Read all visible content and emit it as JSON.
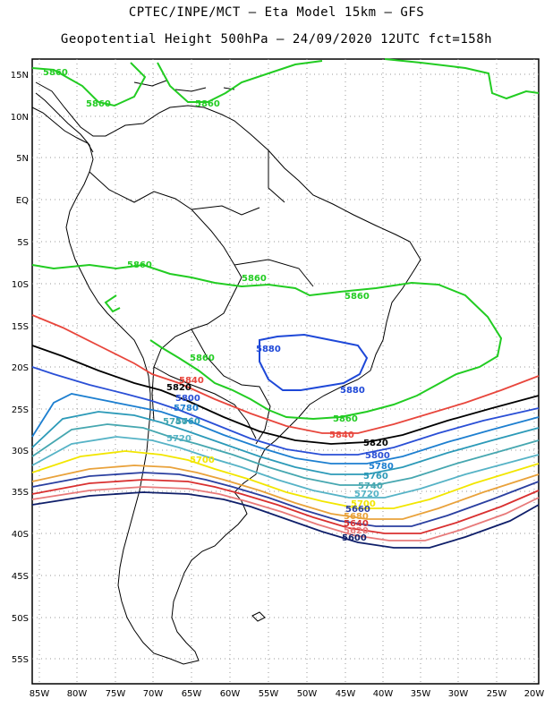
{
  "header": {
    "line1": "CPTEC/INPE/MCT –  Eta Model 15km – GFS",
    "line2": "Geopotential Height 500hPa – 24/09/2020 12UTC fct=158h"
  },
  "axes": {
    "lat_labels": [
      "15N",
      "10N",
      "5N",
      "EQ",
      "5S",
      "10S",
      "15S",
      "20S",
      "25S",
      "30S",
      "35S",
      "40S",
      "45S",
      "50S",
      "55S"
    ],
    "lon_labels": [
      "85W",
      "80W",
      "75W",
      "70W",
      "65W",
      "60W",
      "55W",
      "50W",
      "45W",
      "40W",
      "35W",
      "30W",
      "25W",
      "20W"
    ]
  },
  "contours": [
    {
      "value": "5860",
      "color": "#22cc22"
    },
    {
      "value": "5840",
      "color": "#e8463c"
    },
    {
      "value": "5820",
      "color": "#000000"
    },
    {
      "value": "5800",
      "color": "#2a4fd6"
    },
    {
      "value": "5780",
      "color": "#1d7fd0"
    },
    {
      "value": "5760",
      "color": "#2c9ab8"
    },
    {
      "value": "5740",
      "color": "#46a7b0"
    },
    {
      "value": "5720",
      "color": "#56b3c6"
    },
    {
      "value": "5700",
      "color": "#f2e600"
    },
    {
      "value": "5680",
      "color": "#e9a23b"
    },
    {
      "value": "5660",
      "color": "#2a3fa0"
    },
    {
      "value": "5640",
      "color": "#d93030"
    },
    {
      "value": "5620",
      "color": "#e87a7a"
    },
    {
      "value": "5600",
      "color": "#0f1f6a"
    },
    {
      "value": "5880",
      "color": "#1e48d8"
    }
  ],
  "contour_labels": {
    "g1": "5860",
    "g2": "5860",
    "g3": "5860",
    "g4": "5860",
    "g5": "5860",
    "g6": "5860",
    "g7": "5860",
    "g8": "5860",
    "b1": "5880",
    "b2": "5880",
    "r1": "5840",
    "r2": "5840",
    "k1": "5820",
    "k2": "5820",
    "c1": "5800",
    "c2": "5800",
    "c3": "5780",
    "c4": "5780",
    "c5": "5760",
    "c6": "5760",
    "c7": "5740",
    "c8": "5740",
    "c9": "5720",
    "c10": "5720",
    "y1": "5700",
    "y2": "5700",
    "o1": "5680",
    "o2": "5660",
    "o3": "5640",
    "o4": "5620",
    "o5": "5600"
  }
}
